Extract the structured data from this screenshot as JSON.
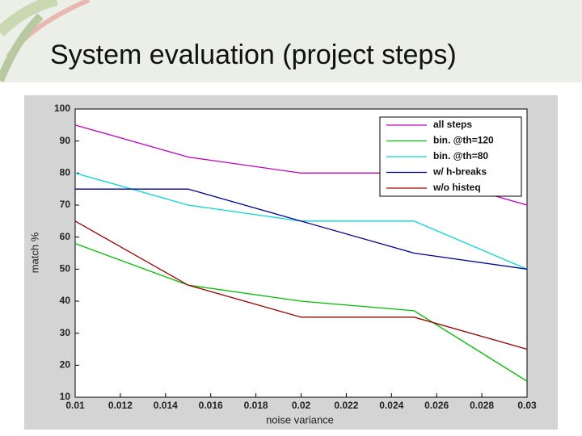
{
  "chart_data": {
    "type": "line",
    "title": "System evaluation (project steps)",
    "x": [
      0.01,
      0.015,
      0.02,
      0.025,
      0.03
    ],
    "series": [
      {
        "name": "all steps",
        "color": "#c000c0",
        "values": [
          95,
          85,
          80,
          80,
          70
        ]
      },
      {
        "name": "bin. @th=120",
        "color": "#00c000",
        "values": [
          58,
          45,
          40,
          37,
          15
        ]
      },
      {
        "name": "bin. @th=80",
        "color": "#00d8d8",
        "values": [
          80,
          70,
          65,
          65,
          50
        ]
      },
      {
        "name": "w/ h-breaks",
        "color": "#0000a0",
        "values": [
          75,
          75,
          65,
          55,
          50
        ]
      },
      {
        "name": "w/o histeq",
        "color": "#a00000",
        "values": [
          65,
          45,
          35,
          35,
          25
        ]
      }
    ],
    "xlabel": "noise variance",
    "ylabel": "match %",
    "xlim": [
      0.01,
      0.03
    ],
    "xticks": [
      0.01,
      0.012,
      0.014,
      0.016,
      0.018,
      0.02,
      0.022,
      0.024,
      0.026,
      0.028,
      0.03
    ],
    "ylim": [
      10,
      100
    ],
    "yticks": [
      10,
      20,
      30,
      40,
      50,
      60,
      70,
      80,
      90,
      100
    ],
    "legend": "upper-right"
  }
}
